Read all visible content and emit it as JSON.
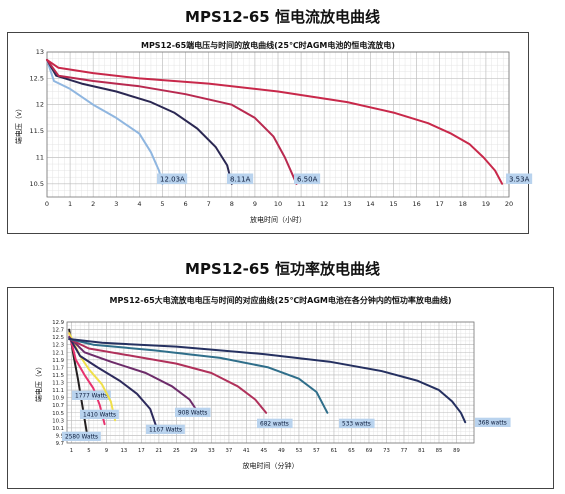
{
  "page": {
    "heading1": "MPS12-65 恒电流放电曲线",
    "heading2": "MPS12-65 恒功率放电曲线"
  },
  "chart_data": [
    {
      "type": "line",
      "title": "MPS12-65端电压与时间的放电曲线(25℃时AGM电池的恒电流放电)",
      "xlabel": "放电时间（小时）",
      "ylabel": "端电压（v）",
      "xlim": [
        0,
        20
      ],
      "ylim": [
        10.25,
        13
      ],
      "xticks": [
        0,
        1,
        2,
        3,
        4,
        5,
        6,
        7,
        8,
        9,
        10,
        11,
        12,
        13,
        14,
        15,
        16,
        17,
        18,
        19,
        20
      ],
      "yticks": [
        10.5,
        11,
        11.5,
        12,
        12.5,
        13
      ],
      "grid": true,
      "series": [
        {
          "name": "12.03A",
          "color": "#8fb6e0",
          "points": [
            [
              0,
              12.85
            ],
            [
              0.3,
              12.45
            ],
            [
              1,
              12.3
            ],
            [
              2,
              12.0
            ],
            [
              3,
              11.75
            ],
            [
              4,
              11.45
            ],
            [
              4.5,
              11.1
            ],
            [
              4.85,
              10.75
            ],
            [
              5.0,
              10.5
            ]
          ]
        },
        {
          "name": "8.11A",
          "color": "#2a2752",
          "points": [
            [
              0,
              12.85
            ],
            [
              0.4,
              12.55
            ],
            [
              1.5,
              12.4
            ],
            [
              3,
              12.25
            ],
            [
              4.5,
              12.05
            ],
            [
              5.5,
              11.85
            ],
            [
              6.5,
              11.55
            ],
            [
              7.3,
              11.2
            ],
            [
              7.8,
              10.85
            ],
            [
              8.0,
              10.5
            ]
          ]
        },
        {
          "name": "6.50A",
          "color": "#b8294f",
          "points": [
            [
              0,
              12.85
            ],
            [
              0.5,
              12.55
            ],
            [
              2,
              12.45
            ],
            [
              4,
              12.35
            ],
            [
              6,
              12.2
            ],
            [
              8,
              12.0
            ],
            [
              9,
              11.75
            ],
            [
              9.8,
              11.4
            ],
            [
              10.3,
              11.0
            ],
            [
              10.6,
              10.7
            ],
            [
              10.8,
              10.5
            ]
          ]
        },
        {
          "name": "3.53A",
          "color": "#c8284a",
          "points": [
            [
              0,
              12.85
            ],
            [
              0.5,
              12.7
            ],
            [
              2,
              12.6
            ],
            [
              4,
              12.5
            ],
            [
              7,
              12.4
            ],
            [
              10,
              12.25
            ],
            [
              13,
              12.05
            ],
            [
              15,
              11.85
            ],
            [
              16.5,
              11.65
            ],
            [
              17.5,
              11.45
            ],
            [
              18.3,
              11.25
            ],
            [
              18.9,
              11.0
            ],
            [
              19.4,
              10.75
            ],
            [
              19.7,
              10.5
            ]
          ]
        }
      ]
    },
    {
      "type": "line",
      "title": "MPS12-65大电流放电电压与时间的对应曲线(25℃时AGM电池在各分钟内的恒功率放电曲线)",
      "xlabel": "放电时间（分钟）",
      "ylabel": "端电压（v）",
      "xlim": [
        0,
        93
      ],
      "ylim": [
        9.7,
        12.9
      ],
      "xticks": [
        1,
        5,
        9,
        13,
        17,
        21,
        25,
        29,
        33,
        37,
        41,
        45,
        49,
        53,
        57,
        61,
        65,
        69,
        73,
        77,
        81,
        85,
        89
      ],
      "yticks": [
        9.7,
        9.9,
        10.1,
        10.3,
        10.5,
        10.7,
        10.9,
        11.1,
        11.3,
        11.5,
        11.7,
        11.9,
        12.1,
        12.3,
        12.5,
        12.7,
        12.9
      ],
      "ytick_labels": [
        "9.7",
        "9.9",
        "10.1",
        "10.3",
        "10.5",
        "10.7",
        "10.9",
        "11.1",
        "11.3",
        "11.5",
        "11.7",
        "11.9",
        "12.1",
        "12.3",
        "12.5",
        "12.7",
        "12.9"
      ],
      "grid": true,
      "series": [
        {
          "name": "2580 Watts",
          "color": "#231f20",
          "points": [
            [
              0.5,
              12.7
            ],
            [
              1.5,
              12.0
            ],
            [
              2.5,
              11.4
            ],
            [
              3.5,
              10.7
            ],
            [
              4.2,
              10.2
            ],
            [
              4.7,
              9.85
            ]
          ]
        },
        {
          "name": "1777 Watts",
          "color": "#e8326e",
          "points": [
            [
              0.5,
              12.6
            ],
            [
              2,
              11.9
            ],
            [
              4,
              11.5
            ],
            [
              6,
              11.15
            ],
            [
              7.5,
              10.7
            ],
            [
              8.6,
              10.2
            ]
          ]
        },
        {
          "name": "1410 Watts",
          "color": "#f0e04a",
          "points": [
            [
              0.5,
              12.6
            ],
            [
              3,
              12.0
            ],
            [
              5,
              11.65
            ],
            [
              8,
              11.25
            ],
            [
              10,
              10.8
            ],
            [
              11,
              10.3
            ]
          ]
        },
        {
          "name": "1167 Watts",
          "color": "#2d2a5c",
          "points": [
            [
              0.5,
              12.5
            ],
            [
              3,
              12.0
            ],
            [
              7,
              11.7
            ],
            [
              12,
              11.35
            ],
            [
              16,
              11.0
            ],
            [
              19,
              10.6
            ],
            [
              20.5,
              10.1
            ]
          ]
        },
        {
          "name": "908 Watts",
          "color": "#6d2c6a",
          "points": [
            [
              0.5,
              12.5
            ],
            [
              4,
              12.1
            ],
            [
              10,
              11.85
            ],
            [
              18,
              11.55
            ],
            [
              24,
              11.2
            ],
            [
              28,
              10.85
            ],
            [
              30,
              10.5
            ]
          ]
        },
        {
          "name": "682 watts",
          "color": "#b0305a",
          "points": [
            [
              0.5,
              12.45
            ],
            [
              5,
              12.2
            ],
            [
              15,
              12.0
            ],
            [
              25,
              11.8
            ],
            [
              33,
              11.55
            ],
            [
              39,
              11.2
            ],
            [
              43,
              10.85
            ],
            [
              45.5,
              10.5
            ]
          ]
        },
        {
          "name": "533 watts",
          "color": "#2f6e8a",
          "points": [
            [
              0.5,
              12.45
            ],
            [
              6,
              12.3
            ],
            [
              20,
              12.15
            ],
            [
              35,
              11.95
            ],
            [
              46,
              11.7
            ],
            [
              53,
              11.4
            ],
            [
              57,
              11.05
            ],
            [
              59.5,
              10.5
            ]
          ]
        },
        {
          "name": "368 watts",
          "color": "#253060",
          "points": [
            [
              0.5,
              12.45
            ],
            [
              8,
              12.35
            ],
            [
              25,
              12.25
            ],
            [
              45,
              12.05
            ],
            [
              60,
              11.85
            ],
            [
              72,
              11.6
            ],
            [
              80,
              11.35
            ],
            [
              85,
              11.1
            ],
            [
              88,
              10.8
            ],
            [
              90,
              10.5
            ],
            [
              91,
              10.25
            ]
          ]
        }
      ]
    }
  ]
}
